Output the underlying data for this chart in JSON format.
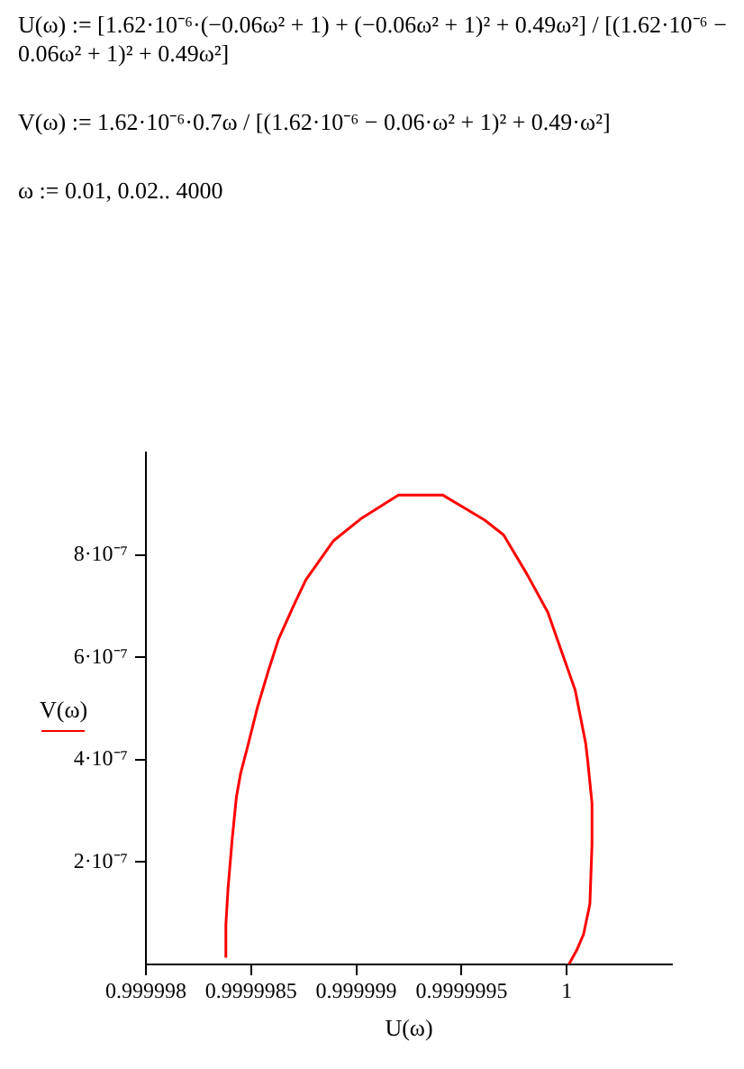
{
  "chart_data": {
    "type": "line",
    "xlabel": "U(ω)",
    "annotations": [
      "U(ω) := [1.62·10⁻⁶·(−0.06ω² + 1) + (−0.06ω² + 1)² + 0.49ω²] / [(1.62·10⁻⁶ − 0.06ω² + 1)² + 0.49ω²]",
      "V(ω) := 1.62·10⁻⁶·0.7ω / [(1.62·10⁻⁶ − 0.06·ω² + 1)² + 0.49·ω²]",
      "ω := 0.01, 0.02.. 4000"
    ],
    "x": [
      0.99999838,
      0.99999838,
      0.99999839,
      0.99999841,
      0.99999843,
      0.99999845,
      0.99999848,
      0.99999853,
      0.99999858,
      0.99999863,
      0.9999987,
      0.99999876,
      0.99999889,
      0.99999902,
      0.9999992,
      0.99999941,
      0.99999961,
      0.9999997,
      0.99999981,
      0.99999991,
      0.99999998,
      1.00000004,
      1.00000009,
      1.0000001,
      1.00000012,
      1.00000012,
      1.00000011,
      1.00000008,
      1.00000005,
      1.00000001
    ],
    "series": [
      {
        "name": "V(ω)",
        "color": "#ff0000",
        "values": [
          1.3e-08,
          7.7e-08,
          1.47e-07,
          2.45e-07,
          3.27e-07,
          3.73e-07,
          4.2e-07,
          5.02e-07,
          5.71e-07,
          6.35e-07,
          6.99e-07,
          7.51e-07,
          8.27e-07,
          8.7e-07,
          9.17e-07,
          9.17e-07,
          8.68e-07,
          8.39e-07,
          7.63e-07,
          6.88e-07,
          6.06e-07,
          5.36e-07,
          4.32e-07,
          3.97e-07,
          3.15e-07,
          2.34e-07,
          1.18e-07,
          5.9e-08,
          3e-08,
          0
        ]
      }
    ],
    "xlim": [
      0.999998,
      1.0000005
    ],
    "xticks": [
      0.999998,
      0.9999985,
      0.999999,
      0.9999995,
      1
    ],
    "ylim": [
      0,
      1e-06
    ],
    "yticks": [
      {
        "value": 2e-07,
        "label": "2·10⁻⁷"
      },
      {
        "value": 4e-07,
        "label": "4·10⁻⁷"
      },
      {
        "value": 6e-07,
        "label": "6·10⁻⁷"
      },
      {
        "value": 8e-07,
        "label": "8·10⁻⁷"
      }
    ],
    "grid": false,
    "legend": "left",
    "marker": "none",
    "line_style": "solid"
  }
}
